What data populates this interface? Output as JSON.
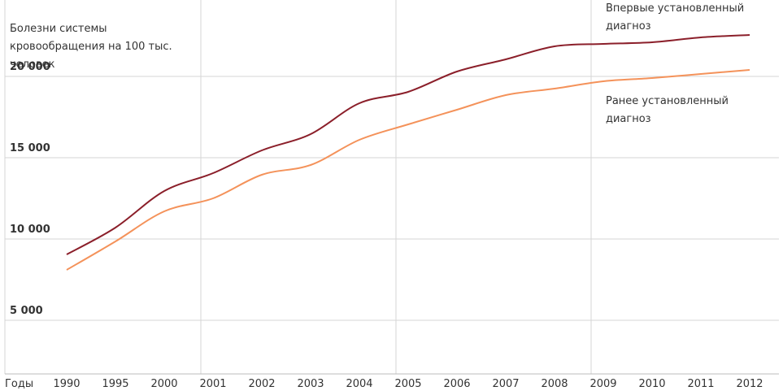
{
  "chart_data": {
    "type": "line",
    "ylabel": "Болезни системы кровообращения на 100 тыс. человек",
    "xlabel": "Годы",
    "categories": [
      "1990",
      "1995",
      "2000",
      "2001",
      "2002",
      "2003",
      "2004",
      "2005",
      "2006",
      "2007",
      "2008",
      "2009",
      "2010",
      "2011",
      "2012"
    ],
    "series": [
      {
        "name": "Впервые установленный диагноз",
        "color": "#8b1f2a",
        "values": [
          9050,
          10700,
          12950,
          14050,
          15450,
          16450,
          18350,
          19050,
          20300,
          21050,
          21850,
          22000,
          22100,
          22400,
          22550
        ]
      },
      {
        "name": "Ранее установленный диагноз",
        "color": "#f4925a",
        "values": [
          8100,
          9850,
          11700,
          12500,
          13950,
          14550,
          16100,
          17050,
          17950,
          18850,
          19250,
          19700,
          19900,
          20150,
          20400
        ]
      }
    ],
    "ylim": [
      1700,
      24700
    ],
    "yticks": [
      {
        "value": 5000,
        "label": "5 000"
      },
      {
        "value": 10000,
        "label": "10 000"
      },
      {
        "value": 15000,
        "label": "15 000"
      },
      {
        "value": 20000,
        "label": "20 000"
      }
    ],
    "grid": true
  }
}
